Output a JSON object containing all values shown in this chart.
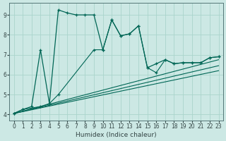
{
  "xlabel": "Humidex (Indice chaleur)",
  "bg_color": "#cce8e4",
  "line_color": "#006655",
  "grid_color": "#aad4cc",
  "xlim": [
    -0.5,
    23.5
  ],
  "ylim": [
    3.7,
    9.6
  ],
  "xticks": [
    0,
    1,
    2,
    3,
    4,
    5,
    6,
    7,
    8,
    9,
    10,
    11,
    12,
    13,
    14,
    15,
    16,
    17,
    18,
    19,
    20,
    21,
    22,
    23
  ],
  "yticks": [
    4,
    5,
    6,
    7,
    8,
    9
  ],
  "curve1_x": [
    0,
    1,
    2,
    3,
    4,
    5,
    6,
    7,
    8,
    9,
    10,
    11,
    12,
    13,
    14,
    15,
    16,
    17,
    18,
    19,
    20,
    21,
    22,
    23
  ],
  "curve1_y": [
    4.05,
    4.25,
    4.4,
    7.25,
    4.55,
    9.25,
    9.1,
    9.0,
    9.0,
    9.0,
    7.25,
    8.75,
    7.95,
    8.05,
    8.45,
    6.35,
    6.55,
    6.75,
    6.55,
    6.6,
    6.6,
    6.6,
    6.85,
    6.9
  ],
  "curve2_x": [
    0,
    1,
    3,
    4,
    5,
    9,
    10,
    11,
    12,
    13,
    14,
    15,
    16,
    17,
    18,
    19,
    20,
    21,
    22,
    23
  ],
  "curve2_y": [
    4.05,
    4.25,
    4.4,
    4.55,
    5.0,
    7.25,
    7.25,
    8.75,
    7.95,
    8.05,
    8.45,
    6.35,
    6.1,
    6.75,
    6.55,
    6.6,
    6.6,
    6.6,
    6.85,
    6.9
  ],
  "line1_x": [
    0,
    23
  ],
  "line1_y": [
    4.05,
    6.75
  ],
  "line2_x": [
    0,
    23
  ],
  "line2_y": [
    4.05,
    6.45
  ],
  "line3_x": [
    0,
    23
  ],
  "line3_y": [
    4.05,
    6.2
  ]
}
